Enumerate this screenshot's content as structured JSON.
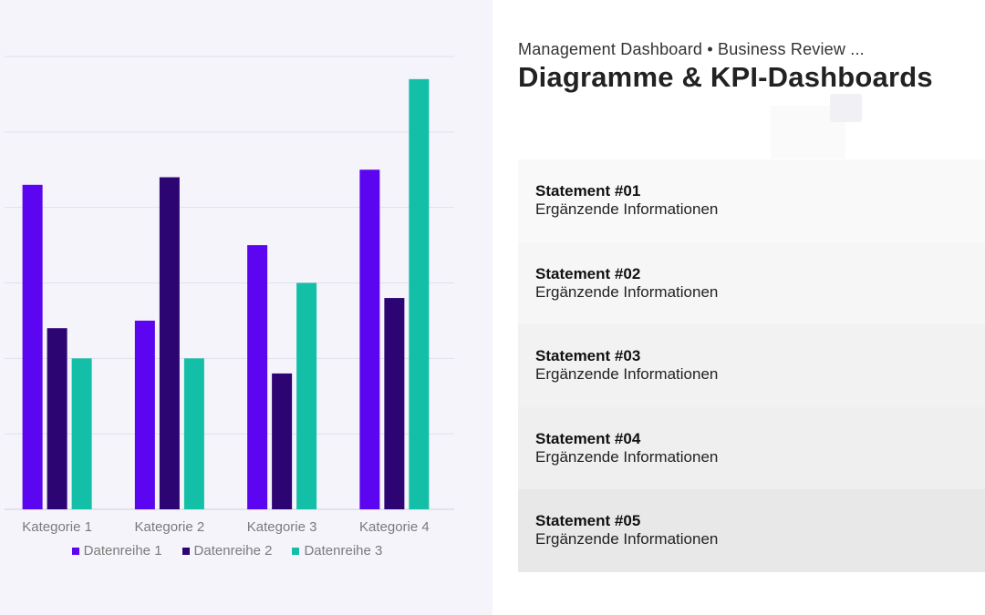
{
  "chart_data": {
    "type": "bar",
    "categories": [
      "Kategorie 1",
      "Kategorie 2",
      "Kategorie 3",
      "Kategorie 4"
    ],
    "series": [
      {
        "name": "Datenreihe 1",
        "color": "#5b05f0",
        "values": [
          4.3,
          2.5,
          3.5,
          4.5
        ]
      },
      {
        "name": "Datenreihe 2",
        "color": "#2c0573",
        "values": [
          2.4,
          4.4,
          1.8,
          2.8
        ]
      },
      {
        "name": "Datenreihe 3",
        "color": "#13bfa6",
        "values": [
          2.0,
          2.0,
          3.0,
          5.7
        ]
      }
    ],
    "ylim": [
      0,
      6
    ],
    "grid": true,
    "legend": "bottom"
  },
  "header": {
    "subtitle": "Management Dashboard • Business Review ...",
    "title": "Diagramme & KPI-Dashboards"
  },
  "statements": [
    {
      "title": "Statement #01",
      "sub": "Ergänzende Informationen",
      "bg": "#f9f9f9"
    },
    {
      "title": "Statement #02",
      "sub": "Ergänzende Informationen",
      "bg": "#f6f6f6"
    },
    {
      "title": "Statement #03",
      "sub": "Ergänzende Informationen",
      "bg": "#f2f2f2"
    },
    {
      "title": "Statement #04",
      "sub": "Ergänzende Informationen",
      "bg": "#efefef"
    },
    {
      "title": "Statement #05",
      "sub": "Ergänzende Informationen",
      "bg": "#e8e8e8"
    }
  ]
}
